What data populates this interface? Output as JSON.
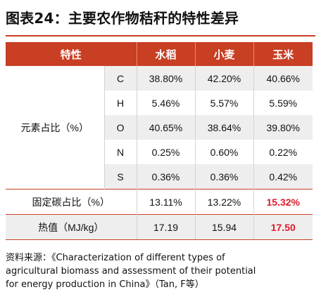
{
  "title": "图表24：主要农作物秸秆的特性差异",
  "colors": {
    "accent": "#c83f24",
    "header_bg": "#c83f24",
    "highlight_text": "#e0182a",
    "shade": "#eeeeee"
  },
  "table": {
    "headers": [
      "特性",
      "水稻",
      "小麦",
      "玉米"
    ],
    "element_group_label": "元素占比（%）",
    "element_rows": [
      {
        "element": "C",
        "rice": "38.80%",
        "wheat": "42.20%",
        "corn": "40.66%"
      },
      {
        "element": "H",
        "rice": "5.46%",
        "wheat": "5.57%",
        "corn": "5.59%"
      },
      {
        "element": "O",
        "rice": "40.65%",
        "wheat": "38.64%",
        "corn": "39.80%"
      },
      {
        "element": "N",
        "rice": "0.25%",
        "wheat": "0.60%",
        "corn": "0.22%"
      },
      {
        "element": "S",
        "rice": "0.36%",
        "wheat": "0.36%",
        "corn": "0.42%"
      }
    ],
    "fixed_carbon": {
      "label": "固定碳占比（%）",
      "rice": "13.11%",
      "wheat": "13.22%",
      "corn": "15.32%"
    },
    "heat_value": {
      "label": "热值（MJ/kg）",
      "rice": "17.19",
      "wheat": "15.94",
      "corn": "17.50"
    }
  },
  "source": {
    "lines": [
      "资料来源：《Characterization of different types of",
      "agricultural biomass and assessment of their potential",
      "for energy production in China》（Tan, F等）"
    ]
  }
}
